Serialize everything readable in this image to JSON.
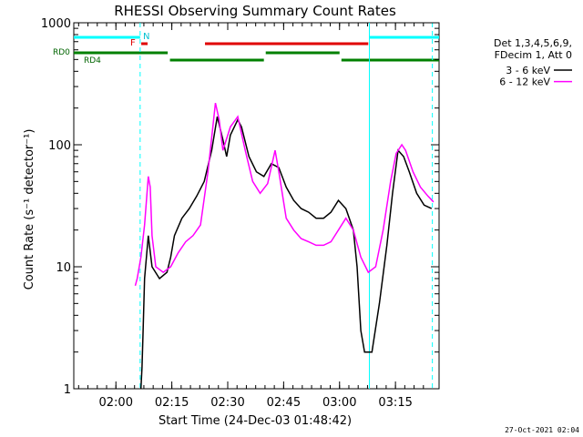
{
  "chart_data": {
    "type": "line",
    "title": "RHESSI Observing Summary Count Rates",
    "xlabel": "Start Time (24-Dec-03 01:48:42)",
    "ylabel": "Count Rate (s⁻¹ detector⁻¹)",
    "y_scale": "log",
    "ylim": [
      1,
      1000
    ],
    "xlim_minutes_after_0148_42": [
      0,
      98
    ],
    "x_ticks": [
      {
        "label": "02:00",
        "minutes": 11.3
      },
      {
        "label": "02:15",
        "minutes": 26.3
      },
      {
        "label": "02:30",
        "minutes": 41.3
      },
      {
        "label": "02:45",
        "minutes": 56.3
      },
      {
        "label": "03:00",
        "minutes": 71.3
      },
      {
        "label": "03:15",
        "minutes": 86.3
      }
    ],
    "y_ticks": [
      {
        "label": "1",
        "value": 1
      },
      {
        "label": "10",
        "value": 10
      },
      {
        "label": "100",
        "value": 100
      },
      {
        "label": "1000",
        "value": 1000
      }
    ],
    "grid": false,
    "legend_position": "right",
    "legend_header": [
      "Det 1,3,4,5,6,9,",
      "FDecim 1, Att 0"
    ],
    "footer_date": "27-Oct-2021 02:04",
    "flag_labels": {
      "n": "N",
      "f": "F",
      "rd0": "RD0",
      "rd4": "RD4"
    },
    "flag_bars": [
      {
        "label": "N",
        "color": "#00ffff",
        "segments": [
          [
            0,
            17.8
          ],
          [
            79.3,
            98
          ]
        ]
      },
      {
        "label": "F",
        "color": "#e00000",
        "segments": [
          [
            18.1,
            19.8
          ],
          [
            35.2,
            79.0
          ]
        ]
      },
      {
        "label": "RD0",
        "color": "#008000",
        "segments": [
          [
            0,
            25.2
          ],
          [
            51.5,
            71.3
          ]
        ]
      },
      {
        "label": "RD4",
        "color": "#008000",
        "segments": [
          [
            25.8,
            51.0
          ],
          [
            71.8,
            98
          ]
        ]
      }
    ],
    "vlines": [
      {
        "minutes": 17.8,
        "color": "#00ffff",
        "style": "dashed"
      },
      {
        "minutes": 79.3,
        "color": "#00ffff",
        "style": "solid"
      },
      {
        "minutes": 96.2,
        "color": "#00ffff",
        "style": "dashed"
      }
    ],
    "series": [
      {
        "name": "3 - 6 keV",
        "color": "#000000",
        "points": [
          [
            18,
            1
          ],
          [
            18.3,
            1.5
          ],
          [
            18.6,
            3
          ],
          [
            19,
            8
          ],
          [
            20,
            18
          ],
          [
            21,
            10
          ],
          [
            23,
            8
          ],
          [
            25,
            9
          ],
          [
            26,
            12
          ],
          [
            27,
            18
          ],
          [
            29,
            25
          ],
          [
            31,
            30
          ],
          [
            33,
            38
          ],
          [
            35,
            50
          ],
          [
            37,
            90
          ],
          [
            38.5,
            170
          ],
          [
            40,
            110
          ],
          [
            41,
            80
          ],
          [
            42,
            120
          ],
          [
            44,
            160
          ],
          [
            45,
            140
          ],
          [
            47,
            80
          ],
          [
            49,
            60
          ],
          [
            51,
            55
          ],
          [
            53,
            70
          ],
          [
            55,
            65
          ],
          [
            57,
            45
          ],
          [
            59,
            35
          ],
          [
            61,
            30
          ],
          [
            63,
            28
          ],
          [
            65,
            25
          ],
          [
            67,
            25
          ],
          [
            69,
            28
          ],
          [
            71,
            35
          ],
          [
            73,
            30
          ],
          [
            75,
            20
          ],
          [
            76,
            10
          ],
          [
            77,
            3
          ],
          [
            78,
            2
          ],
          [
            80,
            2
          ],
          [
            82,
            5
          ],
          [
            84,
            15
          ],
          [
            85.5,
            40
          ],
          [
            87,
            90
          ],
          [
            88.5,
            80
          ],
          [
            90,
            60
          ],
          [
            92,
            40
          ],
          [
            94,
            32
          ],
          [
            96,
            30
          ]
        ]
      },
      {
        "name": "6 - 12 keV",
        "color": "#ff00ff",
        "points": [
          [
            16.5,
            7
          ],
          [
            17,
            8
          ],
          [
            18,
            12
          ],
          [
            19,
            22
          ],
          [
            20,
            55
          ],
          [
            20.5,
            45
          ],
          [
            21,
            18
          ],
          [
            22,
            10
          ],
          [
            24,
            9
          ],
          [
            26,
            10
          ],
          [
            28,
            13
          ],
          [
            30,
            16
          ],
          [
            32,
            18
          ],
          [
            34,
            22
          ],
          [
            36,
            60
          ],
          [
            38,
            220
          ],
          [
            39,
            160
          ],
          [
            40,
            90
          ],
          [
            42,
            140
          ],
          [
            44,
            170
          ],
          [
            46,
            90
          ],
          [
            48,
            50
          ],
          [
            50,
            40
          ],
          [
            52,
            48
          ],
          [
            54,
            90
          ],
          [
            55,
            60
          ],
          [
            57,
            25
          ],
          [
            59,
            20
          ],
          [
            61,
            17
          ],
          [
            63,
            16
          ],
          [
            65,
            15
          ],
          [
            67,
            15
          ],
          [
            69,
            16
          ],
          [
            71,
            20
          ],
          [
            73,
            25
          ],
          [
            75,
            20
          ],
          [
            77,
            12
          ],
          [
            79,
            9
          ],
          [
            81,
            10
          ],
          [
            83,
            20
          ],
          [
            85,
            50
          ],
          [
            86.5,
            85
          ],
          [
            88,
            100
          ],
          [
            89,
            90
          ],
          [
            91,
            60
          ],
          [
            93,
            45
          ],
          [
            95,
            38
          ],
          [
            96.5,
            34
          ]
        ]
      }
    ]
  }
}
